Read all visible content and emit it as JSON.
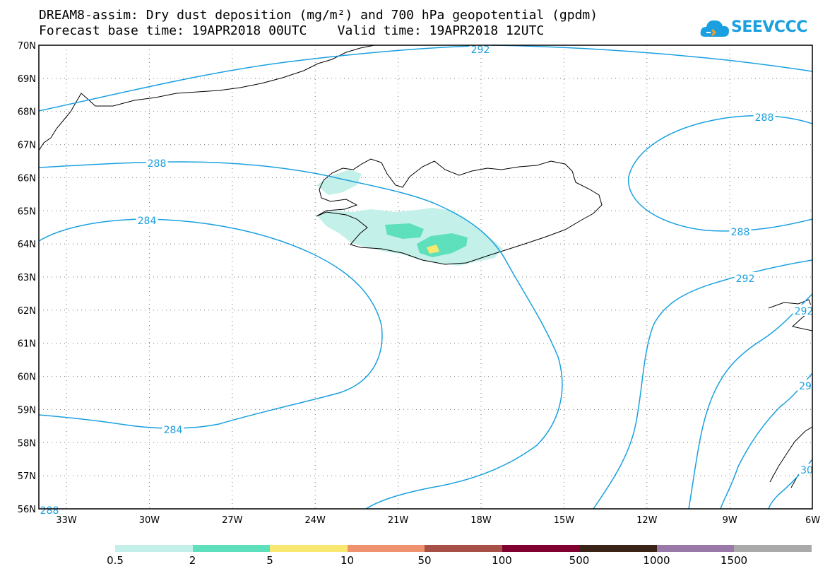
{
  "title_line1": "DREAM8-assim: Dry dust deposition (mg/m²) and 700 hPa geopotential (gpdm)",
  "title_line2": "Forecast base time: 19APR2018 00UTC    Valid time: 19APR2018 12UTC",
  "logo": {
    "text": "SEEVCCC",
    "icon": "cloud-icon"
  },
  "map": {
    "lat_labels": [
      "70N",
      "69N",
      "68N",
      "67N",
      "66N",
      "65N",
      "64N",
      "63N",
      "62N",
      "61N",
      "60N",
      "59N",
      "58N",
      "57N",
      "56N"
    ],
    "lon_labels": [
      "33W",
      "30W",
      "27W",
      "24W",
      "21W",
      "18W",
      "15W",
      "12W",
      "9W",
      "6W"
    ],
    "grid": true,
    "contour_labels": [
      "292",
      "288",
      "288",
      "288",
      "284",
      "284",
      "292",
      "288",
      "292",
      "29",
      "30",
      "28"
    ]
  },
  "legend": {
    "labels": [
      "0.5",
      "2",
      "5",
      "10",
      "50",
      "100",
      "500",
      "1000",
      "1500"
    ],
    "colors": [
      "#c4f0ea",
      "#5ee0bc",
      "#f8e870",
      "#ee9270",
      "#a85048",
      "#800030",
      "#3a2418",
      "#9a78a8",
      "#aaaaaa"
    ]
  }
}
